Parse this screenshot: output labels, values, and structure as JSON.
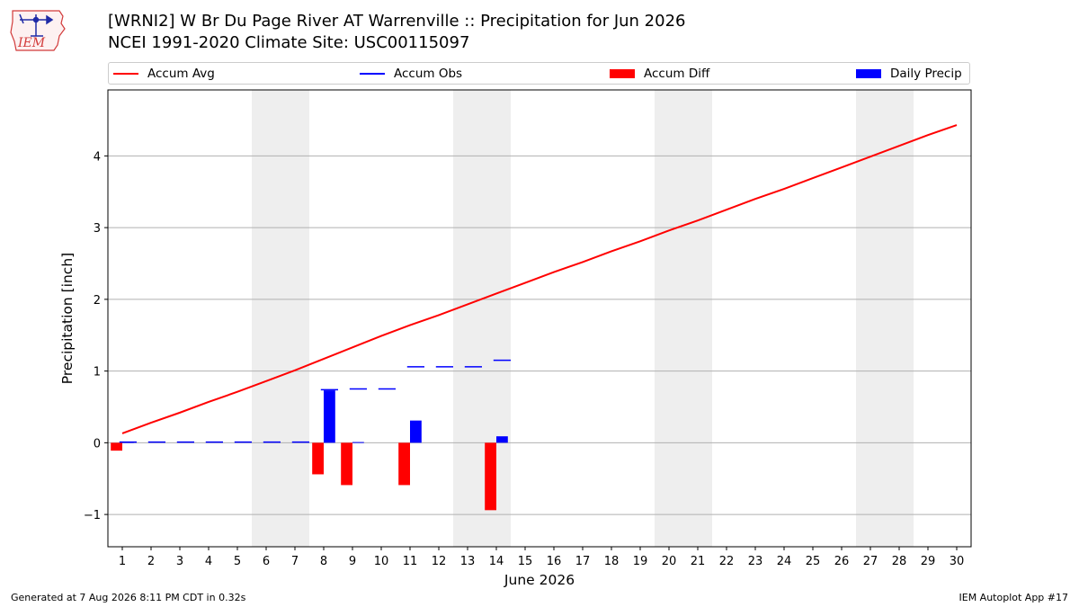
{
  "header": {
    "logo_text": "IEM",
    "title_line1": "[WRNI2] W Br Du Page River  AT Warrenville :: Precipitation for Jun 2026",
    "title_line2": "NCEI 1991-2020 Climate Site: USC00115097"
  },
  "footer": {
    "left": "Generated at 7 Aug 2026 8:11 PM CDT in 0.32s",
    "right": "IEM Autoplot App #17"
  },
  "colors": {
    "avg": "#ff0000",
    "obs": "#0000ff",
    "diff": "#ff0000",
    "daily": "#0000ff",
    "weekend": "#eeeeee",
    "grid": "#b0b0b0"
  },
  "chart_data": {
    "type": "bar",
    "xlabel": "June 2026",
    "ylabel": "Precipitation [inch]",
    "ylim": [
      -1.45,
      4.92
    ],
    "yticks": [
      -1,
      0,
      1,
      2,
      3,
      4
    ],
    "ytick_labels": [
      "−1",
      "0",
      "1",
      "2",
      "3",
      "4"
    ],
    "xlim": [
      0.5,
      30.5
    ],
    "grid": true,
    "legend_placement": "top",
    "days": [
      1,
      2,
      3,
      4,
      5,
      6,
      7,
      8,
      9,
      10,
      11,
      12,
      13,
      14,
      15,
      16,
      17,
      18,
      19,
      20,
      21,
      22,
      23,
      24,
      25,
      26,
      27,
      28,
      29,
      30
    ],
    "weekend_ranges": [
      [
        5.5,
        7.5
      ],
      [
        12.5,
        14.5
      ],
      [
        19.5,
        21.5
      ],
      [
        26.5,
        28.5
      ]
    ],
    "series": [
      {
        "name": "Accum Avg",
        "kind": "line",
        "values": [
          0.13,
          0.28,
          0.42,
          0.57,
          0.71,
          0.86,
          1.01,
          1.17,
          1.33,
          1.49,
          1.64,
          1.78,
          1.93,
          2.08,
          2.23,
          2.38,
          2.52,
          2.67,
          2.81,
          2.96,
          3.1,
          3.25,
          3.4,
          3.54,
          3.69,
          3.84,
          3.99,
          4.14,
          4.29,
          4.43
        ]
      },
      {
        "name": "Accum Obs",
        "kind": "line",
        "values": [
          0.01,
          0.01,
          0.01,
          0.01,
          0.01,
          0.01,
          0.01,
          0.74,
          0.75,
          0.75,
          1.06,
          1.06,
          1.06,
          1.15
        ]
      },
      {
        "name": "Accum Diff",
        "kind": "bar",
        "values": [
          -0.11,
          0,
          0,
          0,
          0,
          0,
          0,
          -0.44,
          -0.59,
          0,
          -0.59,
          0,
          0,
          -0.94
        ]
      },
      {
        "name": "Daily Precip",
        "kind": "bar",
        "values": [
          0.01,
          0,
          0,
          0,
          0,
          0,
          0,
          0.73,
          0.01,
          0,
          0.31,
          0,
          0,
          0.09
        ]
      }
    ]
  }
}
